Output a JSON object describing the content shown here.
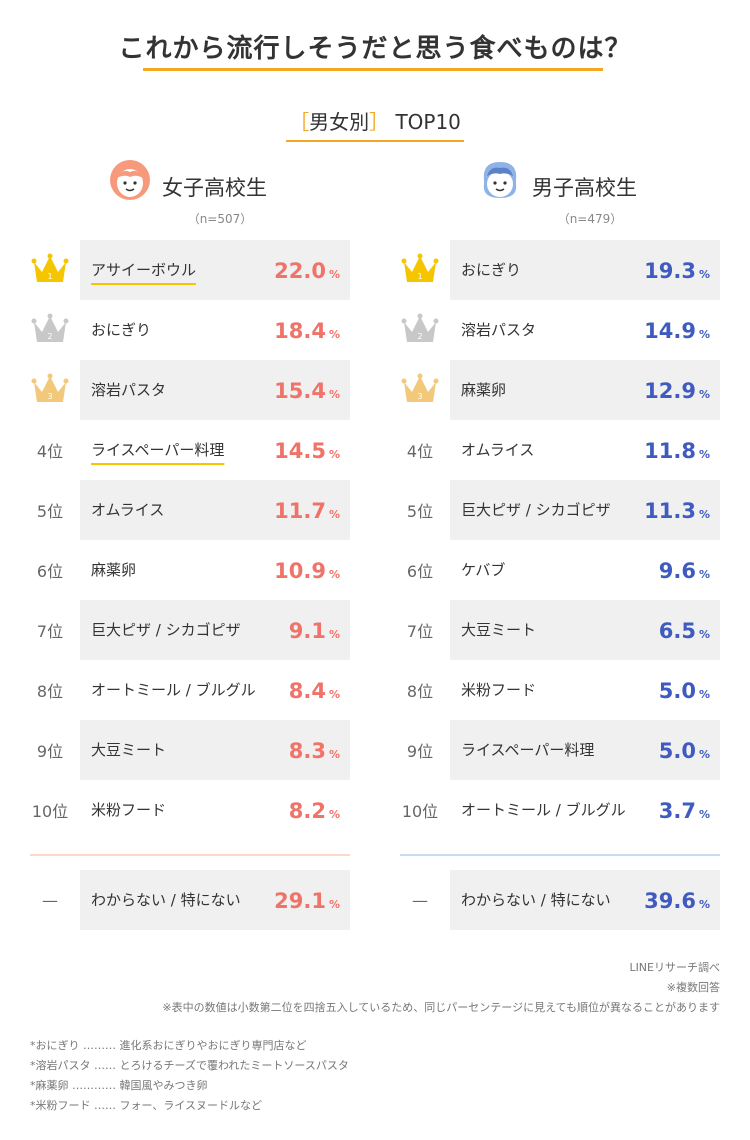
{
  "title": "これから流行しそうだと思う食べものは？",
  "subtitle": {
    "open": "［",
    "label": "男女別",
    "close": "］",
    "rank": "TOP10"
  },
  "percent_sign": "%",
  "colors": {
    "accent": "#f5a623",
    "female_value": "#f0736a",
    "male_value": "#3f5bbf",
    "gold": "#f5c500",
    "silver": "#c8c8c8",
    "bronze": "#f2c87a"
  },
  "chart_data": [
    {
      "type": "table",
      "title": "女子高校生",
      "n": "（n=507）",
      "rows": [
        {
          "rank": "1",
          "rank_label": "",
          "rank_icon": "gold-crown-icon",
          "item": "アサイーボウル",
          "value": "22.0",
          "highlight": true
        },
        {
          "rank": "2",
          "rank_label": "",
          "rank_icon": "silver-crown-icon",
          "item": "おにぎり",
          "value": "18.4",
          "highlight": false
        },
        {
          "rank": "3",
          "rank_label": "",
          "rank_icon": "bronze-crown-icon",
          "item": "溶岩パスタ",
          "value": "15.4",
          "highlight": false
        },
        {
          "rank": "4",
          "rank_label": "4位",
          "item": "ライスペーパー料理",
          "value": "14.5",
          "highlight": true
        },
        {
          "rank": "5",
          "rank_label": "5位",
          "item": "オムライス",
          "value": "11.7",
          "highlight": false
        },
        {
          "rank": "6",
          "rank_label": "6位",
          "item": "麻薬卵",
          "value": "10.9",
          "highlight": false
        },
        {
          "rank": "7",
          "rank_label": "7位",
          "item": "巨大ピザ / シカゴピザ",
          "value": "9.1",
          "highlight": false
        },
        {
          "rank": "8",
          "rank_label": "8位",
          "item": "オートミール / ブルグル",
          "value": "8.4",
          "highlight": false
        },
        {
          "rank": "9",
          "rank_label": "9位",
          "item": "大豆ミート",
          "value": "8.3",
          "highlight": false
        },
        {
          "rank": "10",
          "rank_label": "10位",
          "item": "米粉フード",
          "value": "8.2",
          "highlight": false
        }
      ],
      "other": {
        "rank_label": "—",
        "item": "わからない / 特にない",
        "value": "29.1"
      }
    },
    {
      "type": "table",
      "title": "男子高校生",
      "n": "（n=479）",
      "rows": [
        {
          "rank": "1",
          "rank_label": "",
          "rank_icon": "gold-crown-icon",
          "item": "おにぎり",
          "value": "19.3",
          "highlight": false
        },
        {
          "rank": "2",
          "rank_label": "",
          "rank_icon": "silver-crown-icon",
          "item": "溶岩パスタ",
          "value": "14.9",
          "highlight": false
        },
        {
          "rank": "3",
          "rank_label": "",
          "rank_icon": "bronze-crown-icon",
          "item": "麻薬卵",
          "value": "12.9",
          "highlight": false
        },
        {
          "rank": "4",
          "rank_label": "4位",
          "item": "オムライス",
          "value": "11.8",
          "highlight": false
        },
        {
          "rank": "5",
          "rank_label": "5位",
          "item": "巨大ピザ / シカゴピザ",
          "value": "11.3",
          "highlight": false
        },
        {
          "rank": "6",
          "rank_label": "6位",
          "item": "ケバブ",
          "value": "9.6",
          "highlight": false
        },
        {
          "rank": "7",
          "rank_label": "7位",
          "item": "大豆ミート",
          "value": "6.5",
          "highlight": false
        },
        {
          "rank": "8",
          "rank_label": "8位",
          "item": "米粉フード",
          "value": "5.0",
          "highlight": false
        },
        {
          "rank": "9",
          "rank_label": "9位",
          "item": "ライスペーパー料理",
          "value": "5.0",
          "highlight": false
        },
        {
          "rank": "10",
          "rank_label": "10位",
          "item": "オートミール / ブルグル",
          "value": "3.7",
          "highlight": false
        }
      ],
      "other": {
        "rank_label": "—",
        "item": "わからない / 特にない",
        "value": "39.6"
      }
    }
  ],
  "notes_right": [
    "LINEリサーチ調べ",
    "※複数回答",
    "※表中の数値は小数第二位を四捨五入しているため、同じパーセンテージに見えても順位が異なることがあります"
  ],
  "notes_left": [
    "*おにぎり ……… 進化系おにぎりやおにぎり専門店など",
    "*溶岩パスタ …… とろけるチーズで覆われたミートソースパスタ",
    "*麻薬卵 ………… 韓国風やみつき卵",
    "*米粉フード …… フォー、ライスヌードルなど"
  ]
}
